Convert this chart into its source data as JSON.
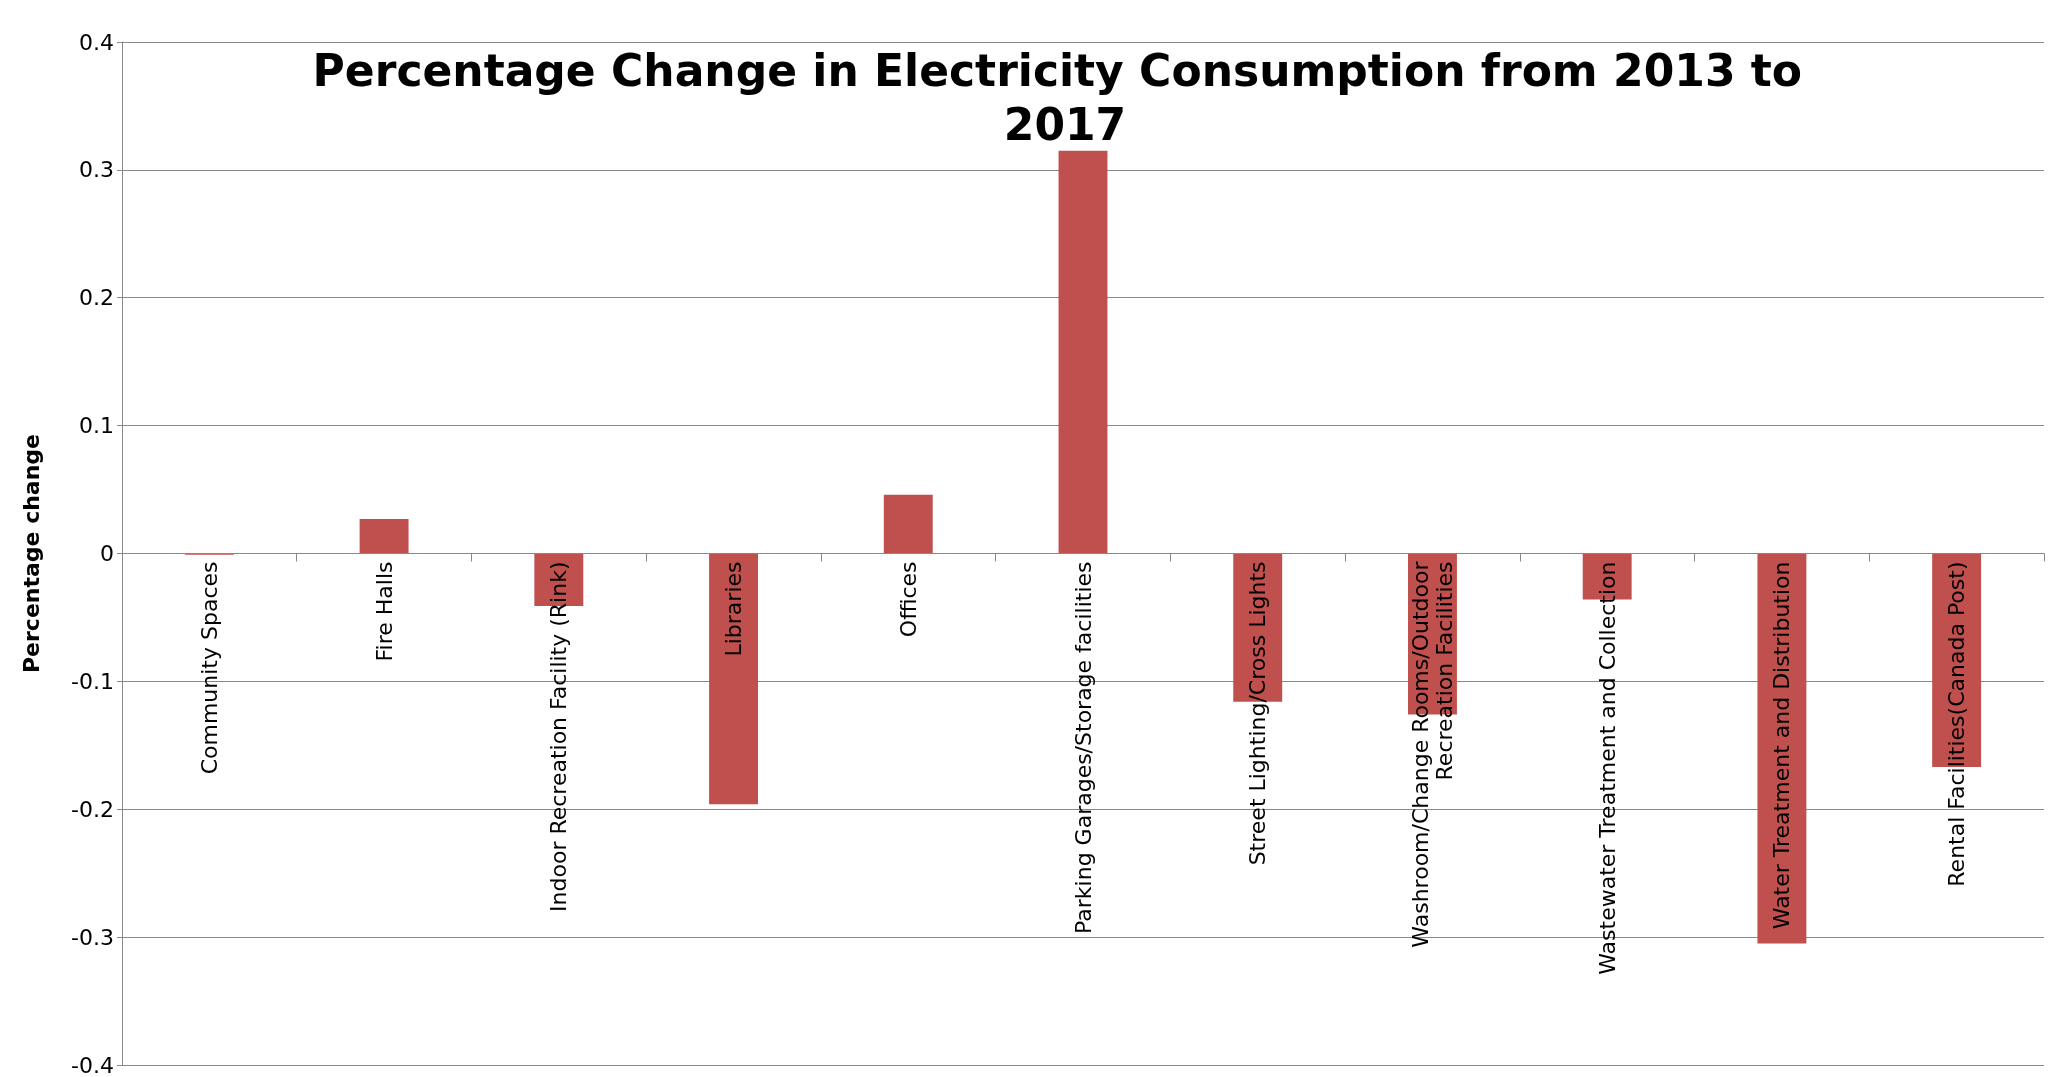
{
  "chart_data": {
    "type": "bar",
    "title": "Percentage Change in Electricity Consumption from 2013 to 2017",
    "ylabel": "Percentage change",
    "categories": [
      "Community Spaces",
      "Fire Halls",
      "Indoor Recreation Facility (Rink)",
      "Libraries",
      "Offices",
      "Parking Garages/Storage facilities",
      "Street Lighting/Cross Lights",
      "Washroom/Change Rooms/Outdoor Recreation Facilities",
      "Wastewater Treatment and Collection",
      "Water Treatment and Distribution",
      "Rental Facilities(Canada Post)"
    ],
    "values": [
      -0.001,
      0.027,
      -0.041,
      -0.196,
      0.046,
      0.315,
      -0.116,
      -0.126,
      -0.036,
      -0.305,
      -0.167
    ],
    "color": "#c0504d",
    "ylim": [
      -0.4,
      0.4
    ],
    "yticks": [
      -0.4,
      -0.3,
      -0.2,
      -0.1,
      0,
      0.1,
      0.2,
      0.3,
      0.4
    ],
    "grid": "y"
  }
}
